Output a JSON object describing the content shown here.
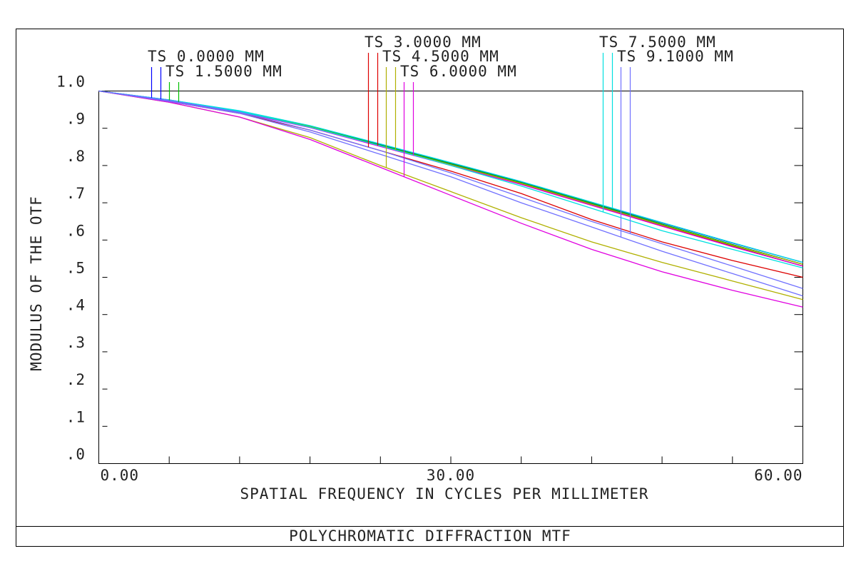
{
  "chart_data": {
    "type": "line",
    "title": "POLYCHROMATIC DIFFRACTION MTF",
    "x_label": "SPATIAL FREQUENCY IN CYCLES PER MILLIMETER",
    "y_label": "MODULUS OF THE OTF",
    "x": [
      0,
      6,
      12,
      18,
      24,
      30,
      36,
      42,
      48,
      54,
      60
    ],
    "xlim": [
      0,
      60
    ],
    "ylim": [
      0,
      1.0
    ],
    "xticks": [
      {
        "value": 0,
        "label": "0.00"
      },
      {
        "value": 30,
        "label": "30.00"
      },
      {
        "value": 60,
        "label": "60.00"
      }
    ],
    "xminor_ticks": [
      6,
      12,
      18,
      24,
      36,
      42,
      48,
      54
    ],
    "yticks": [
      {
        "value": 0,
        "label": ".0"
      },
      {
        "value": 0.1,
        "label": ".1"
      },
      {
        "value": 0.2,
        "label": ".2"
      },
      {
        "value": 0.3,
        "label": ".3"
      },
      {
        "value": 0.4,
        "label": ".4"
      },
      {
        "value": 0.5,
        "label": ".5"
      },
      {
        "value": 0.6,
        "label": ".6"
      },
      {
        "value": 0.7,
        "label": ".7"
      },
      {
        "value": 0.8,
        "label": ".8"
      },
      {
        "value": 0.9,
        "label": ".9"
      },
      {
        "value": 1.0,
        "label": "1.0"
      }
    ],
    "fields": [
      {
        "name": "TS 0.0000 MM",
        "color": "#0000ff",
        "curves": [
          [
            1.0,
            0.976,
            0.946,
            0.906,
            0.856,
            0.806,
            0.756,
            0.701,
            0.646,
            0.592,
            0.54
          ],
          [
            1.0,
            0.975,
            0.945,
            0.905,
            0.855,
            0.804,
            0.753,
            0.698,
            0.642,
            0.588,
            0.535
          ]
        ]
      },
      {
        "name": "TS 1.5000 MM",
        "color": "#00c000",
        "curves": [
          [
            1.0,
            0.975,
            0.945,
            0.905,
            0.855,
            0.805,
            0.754,
            0.699,
            0.643,
            0.588,
            0.535
          ],
          [
            1.0,
            0.975,
            0.944,
            0.904,
            0.853,
            0.802,
            0.751,
            0.695,
            0.639,
            0.584,
            0.53
          ]
        ]
      },
      {
        "name": "TS 3.0000 MM",
        "color": "#dd0000",
        "curves": [
          [
            1.0,
            0.972,
            0.94,
            0.895,
            0.84,
            0.785,
            0.725,
            0.655,
            0.595,
            0.545,
            0.5
          ],
          [
            1.0,
            0.975,
            0.944,
            0.903,
            0.852,
            0.801,
            0.75,
            0.694,
            0.638,
            0.583,
            0.53
          ]
        ]
      },
      {
        "name": "TS 4.5000 MM",
        "color": "#b0b000",
        "curves": [
          [
            1.0,
            0.97,
            0.93,
            0.875,
            0.8,
            0.73,
            0.66,
            0.595,
            0.54,
            0.49,
            0.44
          ],
          [
            1.0,
            0.975,
            0.944,
            0.904,
            0.853,
            0.802,
            0.752,
            0.696,
            0.64,
            0.586,
            0.535
          ]
        ]
      },
      {
        "name": "TS 6.0000 MM",
        "color": "#e000e0",
        "curves": [
          [
            1.0,
            0.97,
            0.93,
            0.87,
            0.795,
            0.72,
            0.645,
            0.575,
            0.515,
            0.465,
            0.42
          ],
          [
            1.0,
            0.974,
            0.943,
            0.902,
            0.851,
            0.8,
            0.749,
            0.693,
            0.637,
            0.582,
            0.53
          ]
        ]
      },
      {
        "name": "TS 7.5000 MM",
        "color": "#00e0e0",
        "curves": [
          [
            1.0,
            0.975,
            0.945,
            0.903,
            0.853,
            0.8,
            0.745,
            0.685,
            0.625,
            0.575,
            0.525
          ],
          [
            1.0,
            0.976,
            0.947,
            0.907,
            0.858,
            0.808,
            0.757,
            0.702,
            0.647,
            0.593,
            0.54
          ]
        ]
      },
      {
        "name": "TS 9.1000 MM",
        "color": "#7070ff",
        "curves": [
          [
            1.0,
            0.972,
            0.94,
            0.89,
            0.83,
            0.77,
            0.7,
            0.635,
            0.57,
            0.51,
            0.45
          ],
          [
            1.0,
            0.975,
            0.943,
            0.895,
            0.84,
            0.78,
            0.715,
            0.65,
            0.59,
            0.53,
            0.47
          ]
        ]
      }
    ]
  }
}
